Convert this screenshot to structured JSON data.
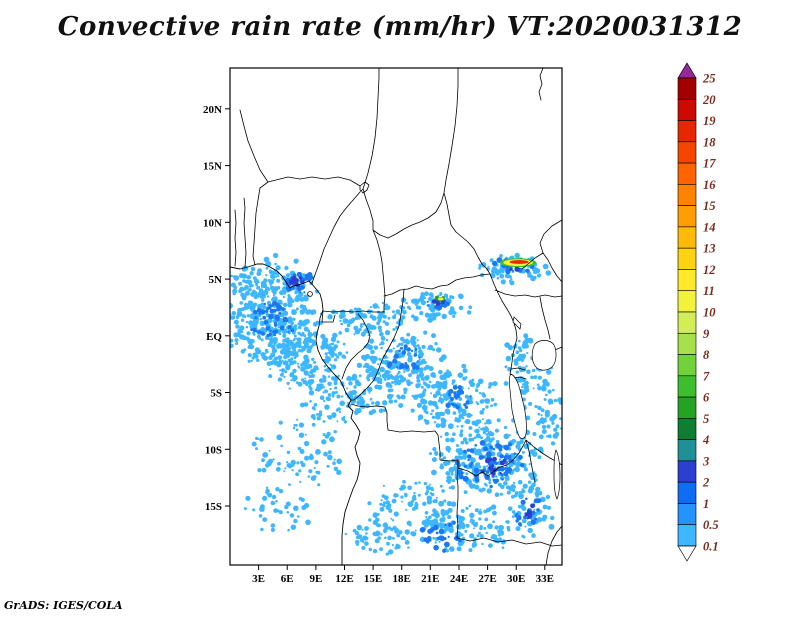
{
  "title": "Convective rain rate (mm/hr) VT:2020031312",
  "attribution": "GrADS: IGES/COLA",
  "map": {
    "lat_ticks": [
      "20N",
      "15N",
      "10N",
      "5N",
      "EQ",
      "5S",
      "10S",
      "15S"
    ],
    "lon_ticks": [
      "3E",
      "6E",
      "9E",
      "12E",
      "15E",
      "18E",
      "21E",
      "24E",
      "27E",
      "30E",
      "33E"
    ]
  },
  "colorbar": {
    "levels": [
      "0.1",
      "0.5",
      "1",
      "2",
      "3",
      "4",
      "5",
      "6",
      "7",
      "8",
      "9",
      "10",
      "11",
      "12",
      "13",
      "14",
      "15",
      "16",
      "17",
      "18",
      "19",
      "20",
      "25"
    ],
    "segment_colors": [
      "#3db7ff",
      "#2492ff",
      "#0f6df5",
      "#2b3fd0",
      "#1f9096",
      "#0f7d32",
      "#23a223",
      "#3cbe2d",
      "#71d23c",
      "#a5e14b",
      "#d2ed55",
      "#f2f23c",
      "#ffe928",
      "#ffd214",
      "#ffb90a",
      "#ff9e00",
      "#ff8200",
      "#ff6400",
      "#f54600",
      "#e62800",
      "#cd0a00",
      "#a50000"
    ],
    "under_color": "#ffffff",
    "over_color": "#96289b",
    "label_color": "#7e2a1e"
  },
  "chart_data": {
    "type": "heatmap",
    "variable": "Convective rain rate",
    "units": "mm/hr",
    "valid_time": "2020031312",
    "lon_range": [
      0,
      34.8
    ],
    "lat_range": [
      -20.2,
      23.6
    ],
    "lon_tick_values": [
      3,
      6,
      9,
      12,
      15,
      18,
      21,
      24,
      27,
      30,
      33
    ],
    "lat_tick_values": [
      20,
      15,
      10,
      5,
      0,
      -5,
      -10,
      -15
    ],
    "levels": [
      0.1,
      0.5,
      1,
      2,
      3,
      4,
      5,
      6,
      7,
      8,
      9,
      10,
      11,
      12,
      13,
      14,
      15,
      16,
      17,
      18,
      19,
      20,
      25
    ],
    "palette": [
      "#3db7ff",
      "#2492ff",
      "#0f6df5",
      "#2b3fd0",
      "#1f9096",
      "#0f7d32",
      "#23a223",
      "#3cbe2d",
      "#71d23c",
      "#a5e14b",
      "#d2ed55",
      "#f2f23c",
      "#ffe928",
      "#ffd214",
      "#ffb90a",
      "#ff9e00",
      "#ff8200",
      "#ff6400",
      "#f54600",
      "#e62800",
      "#cd0a00",
      "#a50000"
    ],
    "under_color": "#ffffff",
    "over_color": "#96289b",
    "rain_areas": [
      {
        "lon": 4.0,
        "lat": 2.0,
        "rlon": 4.8,
        "rlat": 4.4,
        "n": 420,
        "color": "#3db7ff"
      },
      {
        "lon": 7.9,
        "lat": -2.0,
        "rlon": 4.2,
        "rlat": 2.5,
        "n": 180,
        "color": "#3db7ff"
      },
      {
        "lon": 11.0,
        "lat": -5.5,
        "rlon": 3.1,
        "rlat": 1.9,
        "n": 90,
        "color": "#3db7ff"
      },
      {
        "lon": 7.3,
        "lat": -10.3,
        "rlon": 4.7,
        "rlat": 2.6,
        "n": 80,
        "color": "#3db7ff"
      },
      {
        "lon": 5.2,
        "lat": -15.2,
        "rlon": 3.4,
        "rlat": 1.9,
        "n": 40,
        "color": "#3db7ff"
      },
      {
        "lon": 14.7,
        "lat": 1.4,
        "rlon": 3.7,
        "rlat": 1.4,
        "n": 90,
        "color": "#3db7ff"
      },
      {
        "lon": 21.5,
        "lat": 2.6,
        "rlon": 3.4,
        "rlat": 1.1,
        "n": 70,
        "color": "#3db7ff"
      },
      {
        "lon": 18.3,
        "lat": -2.1,
        "rlon": 4.4,
        "rlat": 2.5,
        "n": 160,
        "color": "#3db7ff"
      },
      {
        "lon": 23.3,
        "lat": -5.5,
        "rlon": 4.4,
        "rlat": 2.5,
        "n": 160,
        "color": "#3db7ff"
      },
      {
        "lon": 27.0,
        "lat": -10.8,
        "rlon": 5.0,
        "rlat": 3.3,
        "n": 260,
        "color": "#3db7ff"
      },
      {
        "lon": 31.2,
        "lat": -3.3,
        "rlon": 2.3,
        "rlat": 3.3,
        "n": 90,
        "color": "#3db7ff"
      },
      {
        "lon": 19.4,
        "lat": -15.4,
        "rlon": 4.4,
        "rlat": 2.5,
        "n": 120,
        "color": "#3db7ff"
      },
      {
        "lon": 25.2,
        "lat": -17.1,
        "rlon": 4.2,
        "rlat": 2.1,
        "n": 110,
        "color": "#3db7ff"
      },
      {
        "lon": 31.4,
        "lat": -15.0,
        "rlon": 2.3,
        "rlat": 2.5,
        "n": 70,
        "color": "#3db7ff"
      },
      {
        "lon": 29.6,
        "lat": 6.0,
        "rlon": 3.4,
        "rlat": 1.1,
        "n": 80,
        "color": "#3db7ff"
      },
      {
        "lon": 15.7,
        "lat": -17.8,
        "rlon": 3.1,
        "rlat": 1.6,
        "n": 50,
        "color": "#3db7ff"
      },
      {
        "lon": 15.7,
        "lat": -4.6,
        "rlon": 3.1,
        "rlat": 2.2,
        "n": 60,
        "color": "#3db7ff"
      },
      {
        "lon": 33.5,
        "lat": -7.2,
        "rlon": 1.3,
        "rlat": 2.6,
        "n": 40,
        "color": "#3db7ff"
      },
      {
        "lon": 7.3,
        "lat": 4.7,
        "rlon": 1.7,
        "rlat": 0.8,
        "n": 30,
        "color": "#1b78f0"
      },
      {
        "lon": 4.4,
        "lat": 1.4,
        "rlon": 2.3,
        "rlat": 1.6,
        "n": 50,
        "color": "#1b78f0"
      },
      {
        "lon": 27.0,
        "lat": -11.2,
        "rlon": 3.1,
        "rlat": 1.9,
        "n": 70,
        "color": "#1b78f0"
      },
      {
        "lon": 31.2,
        "lat": -15.4,
        "rlon": 1.3,
        "rlat": 1.4,
        "n": 22,
        "color": "#1b78f0"
      },
      {
        "lon": 21.7,
        "lat": 2.8,
        "rlon": 1.3,
        "rlat": 0.5,
        "n": 14,
        "color": "#1b78f0"
      },
      {
        "lon": 29.7,
        "lat": 6.2,
        "rlon": 2.3,
        "rlat": 0.6,
        "n": 26,
        "color": "#1b78f0"
      },
      {
        "lon": 22.2,
        "lat": -17.6,
        "rlon": 2.1,
        "rlat": 1.1,
        "n": 26,
        "color": "#1b78f0"
      },
      {
        "lon": 18.4,
        "lat": -2.0,
        "rlon": 1.9,
        "rlat": 1.1,
        "n": 24,
        "color": "#1b78f0"
      },
      {
        "lon": 24.1,
        "lat": -5.7,
        "rlon": 1.7,
        "rlat": 1.1,
        "n": 22,
        "color": "#1b78f0"
      },
      {
        "lon": 7.1,
        "lat": 4.8,
        "rlon": 0.7,
        "rlat": 0.35,
        "n": 8,
        "color": "#2b3fd0"
      },
      {
        "lon": 27.5,
        "lat": -11.5,
        "rlon": 1.5,
        "rlat": 0.8,
        "n": 14,
        "color": "#2b3fd0"
      },
      {
        "lon": 29.9,
        "lat": 6.2,
        "rlon": 1.3,
        "rlat": 0.35,
        "n": 10,
        "color": "#2b3fd0"
      },
      {
        "lon": 22.0,
        "lat": 3.1,
        "rlon": 0.6,
        "rlat": 0.26,
        "n": 6,
        "color": "#2b3fd0"
      },
      {
        "lon": 31.4,
        "lat": -15.6,
        "rlon": 0.6,
        "rlat": 0.7,
        "n": 7,
        "color": "#2b3fd0"
      },
      {
        "lon": 22.1,
        "lat": 3.2,
        "rlon": 0.5,
        "rlat": 0.2,
        "n": 5,
        "color": "#23a223"
      },
      {
        "lon": 29.8,
        "lat": 6.4,
        "rlon": 1.0,
        "rlat": 0.2,
        "n": 7,
        "color": "#23a223"
      }
    ],
    "maxima": [
      {
        "lon": 30.2,
        "lat": 6.45,
        "rlon": 1.9,
        "rlat": 0.4,
        "color": "#3cbe2d"
      },
      {
        "lon": 30.2,
        "lat": 6.45,
        "rlon": 1.55,
        "rlat": 0.3,
        "color": "#f2f23c"
      },
      {
        "lon": 30.3,
        "lat": 6.5,
        "rlon": 1.0,
        "rlat": 0.17,
        "color": "#e62800"
      },
      {
        "lon": 22.1,
        "lat": 3.25,
        "rlon": 0.3,
        "rlat": 0.13,
        "color": "#f2f23c"
      }
    ]
  }
}
